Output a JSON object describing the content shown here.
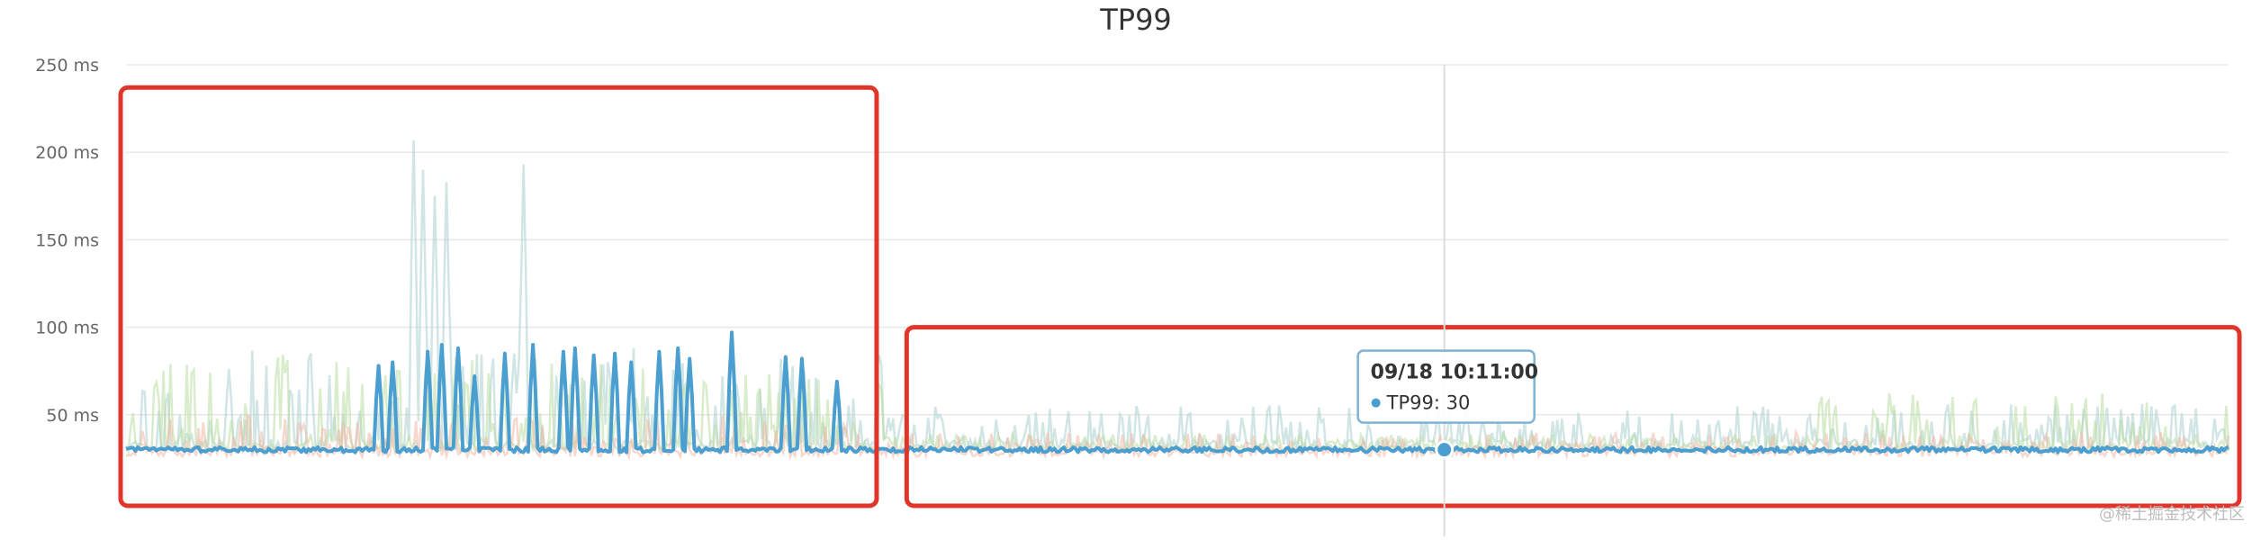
{
  "chart_data": {
    "type": "line",
    "title": "TP99",
    "xlabel": "",
    "ylabel": "",
    "ylim": [
      0,
      250
    ],
    "yticks": [
      {
        "value": 50,
        "label": "50 ms"
      },
      {
        "value": 100,
        "label": "100 ms"
      },
      {
        "value": 150,
        "label": "150 ms"
      },
      {
        "value": 200,
        "label": "200 ms"
      },
      {
        "value": 250,
        "label": "250 ms"
      }
    ],
    "grid": true,
    "legend": "none",
    "tooltip": {
      "time": "09/18 10:11:00",
      "series": "TP99",
      "value": "30",
      "text": "TP99: 30",
      "position": 0.627
    },
    "series": [
      {
        "name": "TP99",
        "color": "#4b9fd0",
        "role": "main",
        "baseline": 30,
        "spikes": [
          {
            "at": 0.12,
            "value": 78
          },
          {
            "at": 0.127,
            "value": 80
          },
          {
            "at": 0.143,
            "value": 86
          },
          {
            "at": 0.15,
            "value": 90
          },
          {
            "at": 0.158,
            "value": 88
          },
          {
            "at": 0.166,
            "value": 72
          },
          {
            "at": 0.18,
            "value": 85
          },
          {
            "at": 0.194,
            "value": 90
          },
          {
            "at": 0.208,
            "value": 86
          },
          {
            "at": 0.214,
            "value": 88
          },
          {
            "at": 0.222,
            "value": 84
          },
          {
            "at": 0.232,
            "value": 85
          },
          {
            "at": 0.24,
            "value": 80
          },
          {
            "at": 0.254,
            "value": 86
          },
          {
            "at": 0.262,
            "value": 88
          },
          {
            "at": 0.268,
            "value": 82
          },
          {
            "at": 0.288,
            "value": 97
          },
          {
            "at": 0.314,
            "value": 83
          },
          {
            "at": 0.321,
            "value": 82
          },
          {
            "at": 0.338,
            "value": 69
          }
        ]
      },
      {
        "name": "",
        "color": "#a9cfcd",
        "role": "background",
        "baseline": 34,
        "spikes": [
          {
            "at": 0.137,
            "value": 207
          },
          {
            "at": 0.141,
            "value": 190
          },
          {
            "at": 0.147,
            "value": 175
          },
          {
            "at": 0.152,
            "value": 183
          },
          {
            "at": 0.189,
            "value": 193
          }
        ]
      },
      {
        "name": "",
        "color": "#b9dda3",
        "role": "background",
        "baseline": 33,
        "spikes": []
      },
      {
        "name": "",
        "color": "#f0b8a6",
        "role": "background",
        "baseline": 30,
        "spikes": []
      }
    ],
    "highlights": [
      {
        "color": "#e0352a",
        "from": 0.0,
        "to": 0.357,
        "top": 237
      },
      {
        "color": "#e0352a",
        "from": 0.373,
        "to": 1.0,
        "top": 100
      }
    ],
    "watermark": "@稀土掘金技术社区"
  }
}
